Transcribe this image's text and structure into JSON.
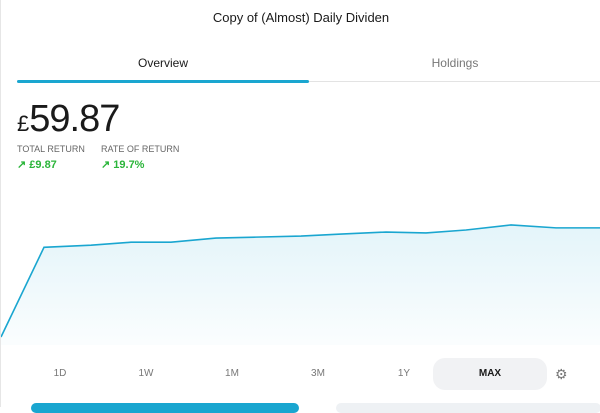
{
  "title": "Copy of (Almost) Daily Dividen",
  "tabs": [
    {
      "label": "Overview",
      "active": true
    },
    {
      "label": "Holdings",
      "active": false
    }
  ],
  "portfolio": {
    "currency": "£",
    "value": "59.87"
  },
  "stats": [
    {
      "label": "TOTAL RETURN",
      "value": "↗ £9.87"
    },
    {
      "label": "RATE OF RETURN",
      "value": "↗ 19.7%"
    }
  ],
  "colors": {
    "accent": "#1aa6d0",
    "positive": "#2bb53a"
  },
  "chart_data": {
    "type": "area",
    "values": [
      0,
      49.2,
      50.4,
      52.0,
      52.0,
      54.3,
      54.8,
      55.4,
      56.5,
      57.6,
      57.1,
      58.7,
      61.5,
      59.87,
      59.87
    ],
    "ylim": [
      0,
      62
    ],
    "grid": false,
    "color": "#1aa6d0"
  },
  "ranges": [
    "1D",
    "1W",
    "1M",
    "3M",
    "1Y",
    "MAX"
  ],
  "selected_range": "MAX",
  "settings_icon": "gear-icon"
}
